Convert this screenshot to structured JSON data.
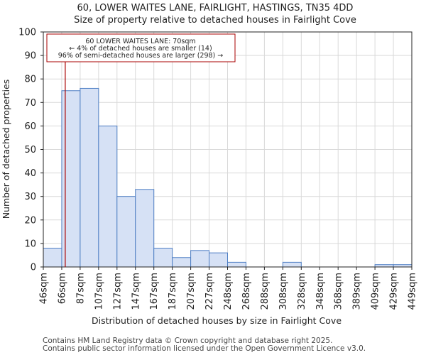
{
  "chart_data": {
    "type": "histogram",
    "title_line1": "60, LOWER WAITES LANE, FAIRLIGHT, HASTINGS, TN35 4DD",
    "title_line2": "Size of property relative to detached houses in Fairlight Cove",
    "xlabel": "Distribution of detached houses by size in Fairlight Cove",
    "ylabel": "Number of detached properties",
    "ylim": [
      0,
      100
    ],
    "yticks": [
      0,
      10,
      20,
      30,
      40,
      50,
      60,
      70,
      80,
      90,
      100
    ],
    "grid": true,
    "categories": [
      "46sqm",
      "66sqm",
      "87sqm",
      "107sqm",
      "127sqm",
      "147sqm",
      "167sqm",
      "187sqm",
      "207sqm",
      "227sqm",
      "248sqm",
      "268sqm",
      "288sqm",
      "308sqm",
      "328sqm",
      "348sqm",
      "368sqm",
      "389sqm",
      "409sqm",
      "429sqm",
      "449sqm"
    ],
    "values": [
      8,
      75,
      76,
      60,
      30,
      33,
      8,
      4,
      7,
      6,
      2,
      0,
      0,
      2,
      0,
      0,
      0,
      0,
      1,
      1
    ],
    "property_marker": {
      "value_sqm": 70,
      "color": "#aa0000"
    },
    "annotation": {
      "line1": "60 LOWER WAITES LANE: 70sqm",
      "line2": "← 4% of detached houses are smaller (14)",
      "line3": "96% of semi-detached houses are larger (298) →"
    },
    "colors": {
      "bar_fill": "#d6e1f5",
      "bar_edge": "#4f7fc4",
      "marker": "#aa0000"
    }
  },
  "footer": {
    "line1": "Contains HM Land Registry data © Crown copyright and database right 2025.",
    "line2": "Contains public sector information licensed under the Open Government Licence v3.0."
  }
}
